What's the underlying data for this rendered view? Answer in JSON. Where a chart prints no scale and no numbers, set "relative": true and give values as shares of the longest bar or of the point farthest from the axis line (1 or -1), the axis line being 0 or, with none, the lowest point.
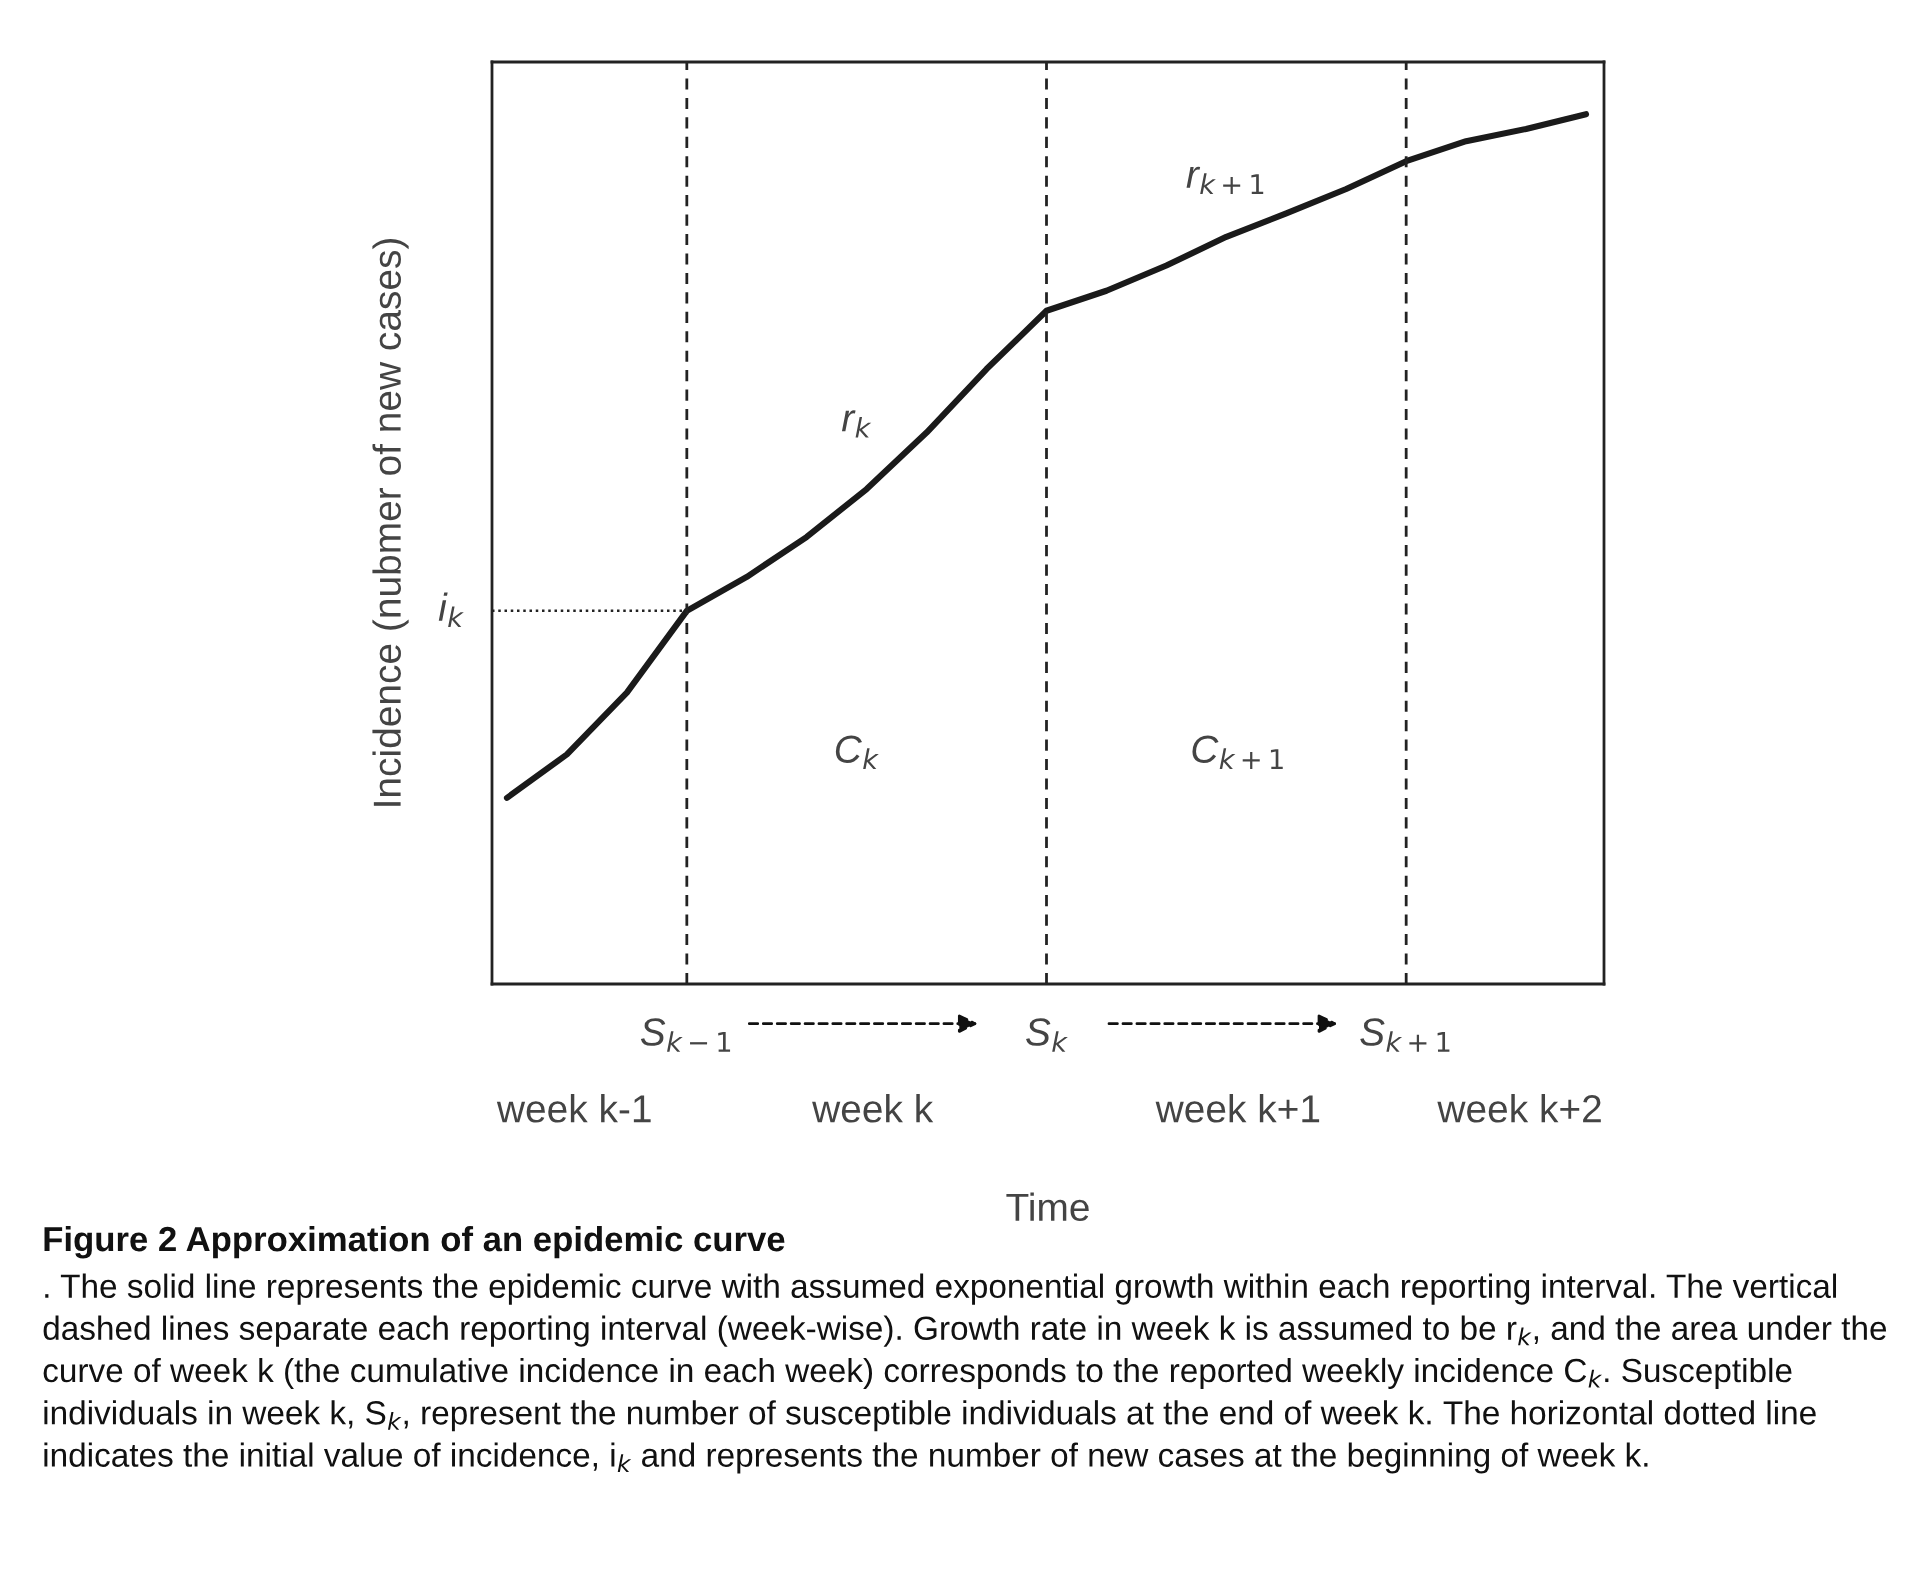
{
  "chart_data": {
    "type": "line",
    "relative": true,
    "color": "#1a1a1a",
    "line_style": "solid",
    "ylabel": "Incidence (nubmer of new cases)",
    "xlabel": "Time",
    "categories": [
      null,
      null,
      null,
      "S$_{k−1}$",
      null,
      null,
      null,
      null,
      null,
      "S$_{k}$",
      null,
      null,
      null,
      null,
      null,
      "S$_{k+1}$",
      null,
      null,
      null
    ],
    "values": [
      0.214,
      0.264,
      0.335,
      0.429,
      0.468,
      0.514,
      0.569,
      0.634,
      0.707,
      0.774,
      0.797,
      0.826,
      0.859,
      0.886,
      0.914,
      0.946,
      0.969,
      0.983,
      1.0
    ],
    "ref_lines": [
      {
        "axis": "x",
        "value": "S$_{k−1}$",
        "line_style": "dashed"
      },
      {
        "axis": "x",
        "value": "S$_{k}$",
        "line_style": "dashed"
      },
      {
        "axis": "x",
        "value": "S$_{k+1}$",
        "line_style": "dashed"
      },
      {
        "axis": "y",
        "value": 0.429,
        "label": "i$_{k}$",
        "line_style": "dotted"
      }
    ],
    "annotations": [
      "r$_{k}$",
      "r$_{k+1}$",
      "C$_{k}$",
      "C$_{k+1}$",
      "week k-1",
      "week k",
      "week k+1",
      "week k+2",
      "Figure 2 Approximation of an epidemic curve",
      ". The solid line represents the epidemic curve with assumed exponential growth within each reporting interval. The vertical dashed lines separate each reporting interval (week-wise). Growth rate in week k is assumed to be r$_{k}$, and the area under the curve of week k (the cumulative incidence in each week) corresponds to the reported weekly incidence C$_{k}$. Susceptible individuals in week k, S$_{k}$, represent the number of susceptible individuals at the end of week k. The horizontal dotted line indicates the initial value of incidence, i$_{k}$ and represents the number of new cases at the beginning of week k."
    ]
  }
}
